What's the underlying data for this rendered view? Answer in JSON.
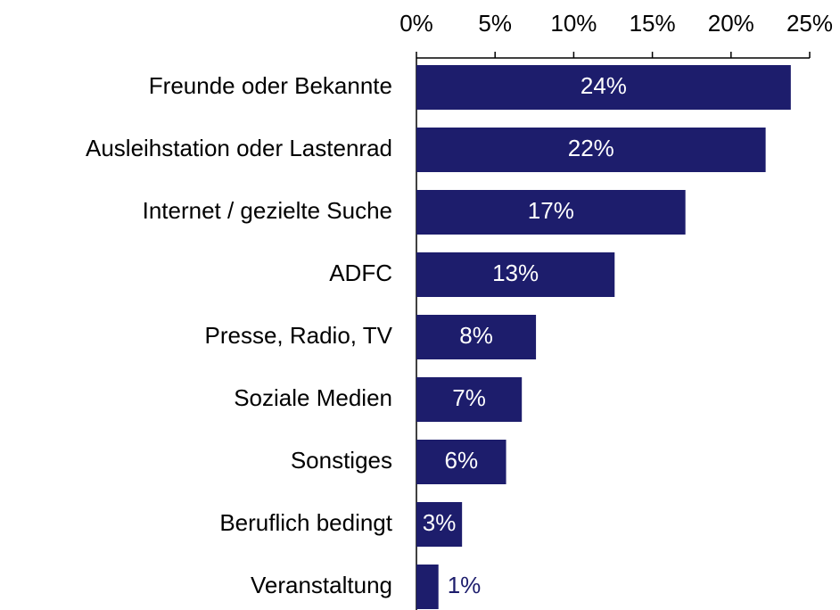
{
  "chart_data": {
    "type": "bar",
    "orientation": "horizontal",
    "categories": [
      "Freunde oder Bekannte",
      "Ausleihstation oder Lastenrad",
      "Internet / gezielte Suche",
      "ADFC",
      "Presse, Radio, TV",
      "Soziale Medien",
      "Sonstiges",
      "Beruflich bedingt",
      "Veranstaltung"
    ],
    "values": [
      23.8,
      22.2,
      17.1,
      12.6,
      7.6,
      6.7,
      5.7,
      2.9,
      1.4
    ],
    "value_labels": [
      "24%",
      "22%",
      "17%",
      "13%",
      "8%",
      "7%",
      "6%",
      "3%",
      "1%"
    ],
    "color": "#1d1d6c",
    "xlim": [
      0,
      25
    ],
    "xticks": [
      {
        "value": 0,
        "label": "0%"
      },
      {
        "value": 5,
        "label": "5%"
      },
      {
        "value": 10,
        "label": "10%"
      },
      {
        "value": 15,
        "label": "15%"
      },
      {
        "value": 20,
        "label": "20%"
      },
      {
        "value": 25,
        "label": "25%"
      }
    ],
    "grid": false
  }
}
